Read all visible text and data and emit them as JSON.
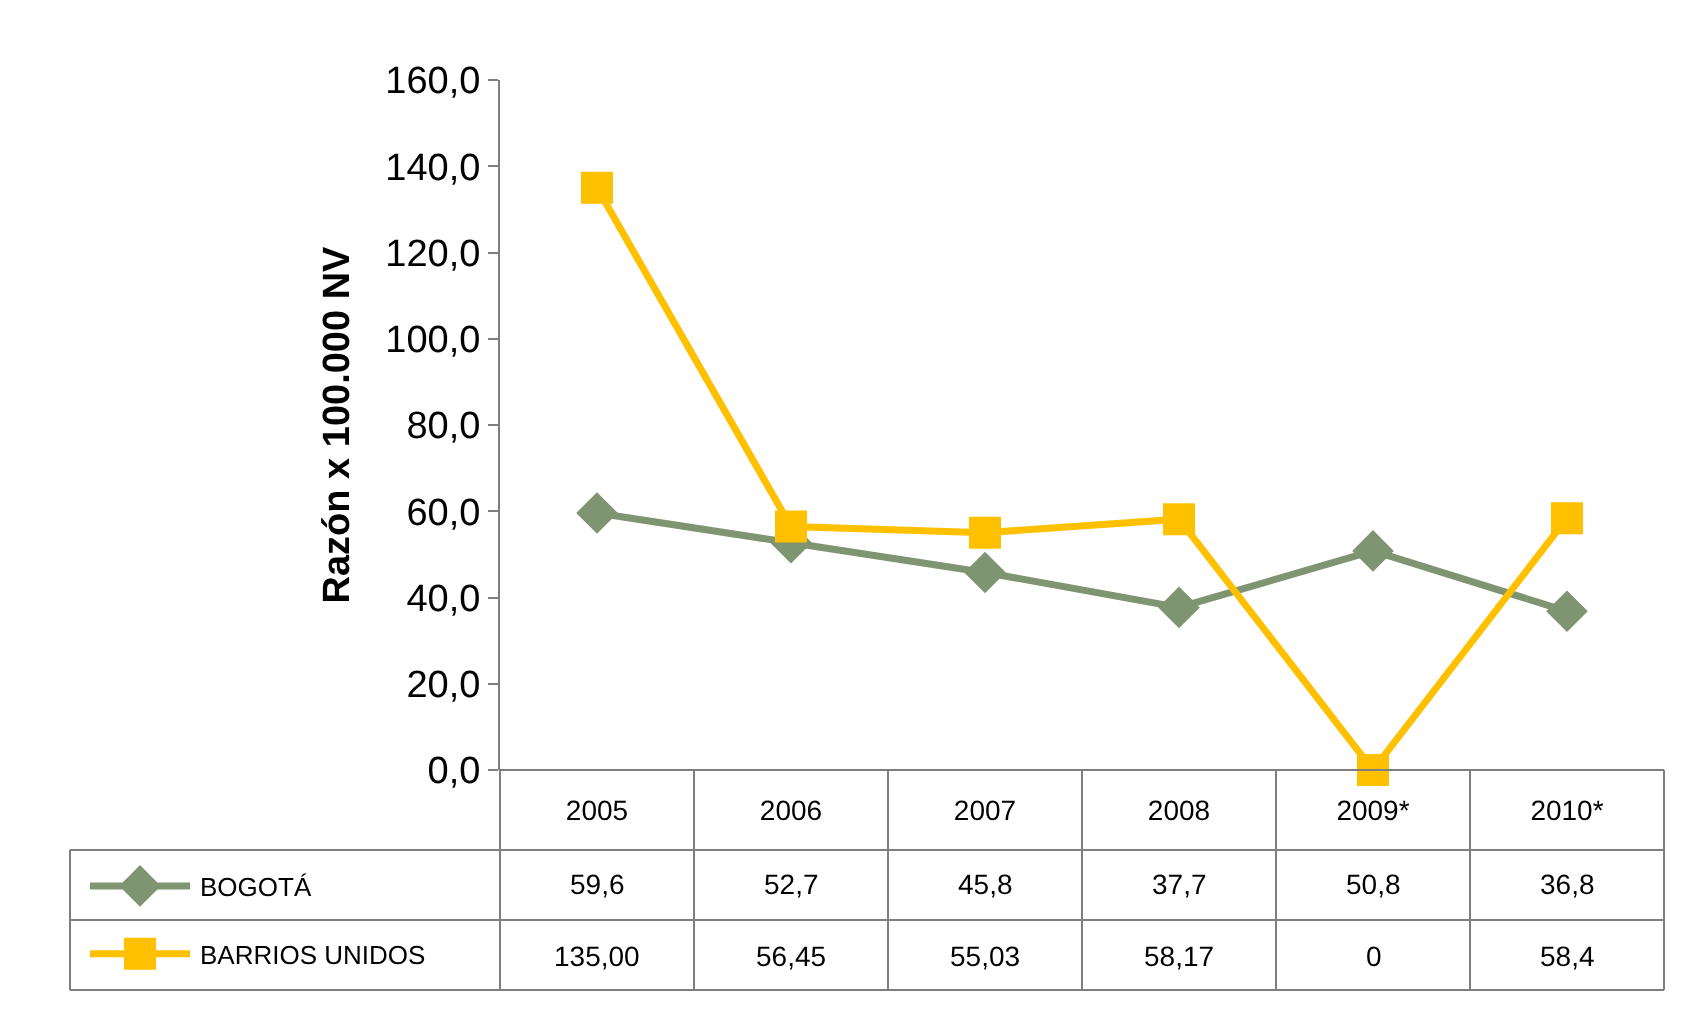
{
  "chart_data": {
    "type": "line",
    "ylabel": "Razón x 100.000 NV",
    "categories": [
      "2005",
      "2006",
      "2007",
      "2008",
      "2009*",
      "2010*"
    ],
    "series": [
      {
        "name": "BOGOTÁ",
        "color": "#7f9471",
        "marker": "diamond",
        "values": [
          59.6,
          52.7,
          45.8,
          37.7,
          50.8,
          36.8
        ],
        "value_labels": [
          "59,6",
          "52,7",
          "45,8",
          "37,7",
          "50,8",
          "36,8"
        ]
      },
      {
        "name": "BARRIOS UNIDOS",
        "color": "#ffc000",
        "marker": "square",
        "values": [
          135.0,
          56.45,
          55.03,
          58.17,
          0,
          58.4
        ],
        "value_labels": [
          "135,00",
          "56,45",
          "55,03",
          "58,17",
          "0",
          "58,4"
        ]
      }
    ],
    "ylim": [
      0,
      160
    ],
    "yticks": [
      {
        "value": 0,
        "label": "0,0"
      },
      {
        "value": 20,
        "label": "20,0"
      },
      {
        "value": 40,
        "label": "40,0"
      },
      {
        "value": 60,
        "label": "60,0"
      },
      {
        "value": 80,
        "label": "80,0"
      },
      {
        "value": 100,
        "label": "100,0"
      },
      {
        "value": 120,
        "label": "120,0"
      },
      {
        "value": 140,
        "label": "140,0"
      },
      {
        "value": 160,
        "label": "160,0"
      }
    ],
    "legend": "bottom left",
    "line_style": "solid"
  }
}
